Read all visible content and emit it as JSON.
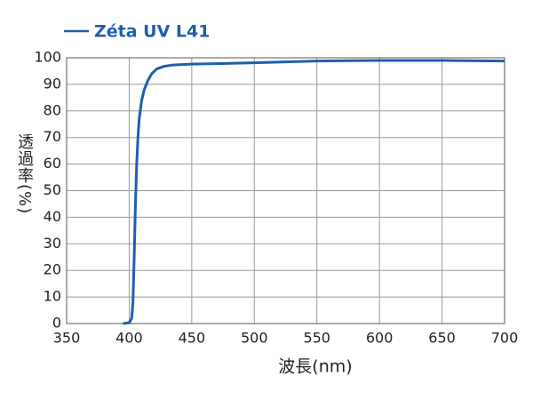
{
  "chart_data": {
    "type": "line",
    "x_label": "波長(nm)",
    "y_label": "透過率(%)",
    "x": [
      395,
      400,
      402,
      403,
      404,
      405,
      406,
      407,
      408,
      410,
      412,
      415,
      418,
      422,
      428,
      435,
      450,
      500,
      550,
      600,
      650,
      700
    ],
    "series": [
      {
        "name": "Zéta UV L41",
        "color": "#1f5fad",
        "values": [
          0,
          0.3,
          2,
          8,
          25,
          45,
          60,
          70,
          77,
          84,
          88,
          91.5,
          94,
          95.8,
          96.8,
          97.3,
          97.6,
          98.1,
          98.8,
          99,
          99,
          98.8
        ]
      }
    ],
    "xlim": [
      350,
      700
    ],
    "xticks": [
      350,
      400,
      450,
      500,
      550,
      600,
      650,
      700
    ],
    "ylim": [
      0,
      100
    ],
    "yticks": [
      0,
      10,
      20,
      30,
      40,
      50,
      60,
      70,
      80,
      90,
      100
    ],
    "grid": true
  }
}
